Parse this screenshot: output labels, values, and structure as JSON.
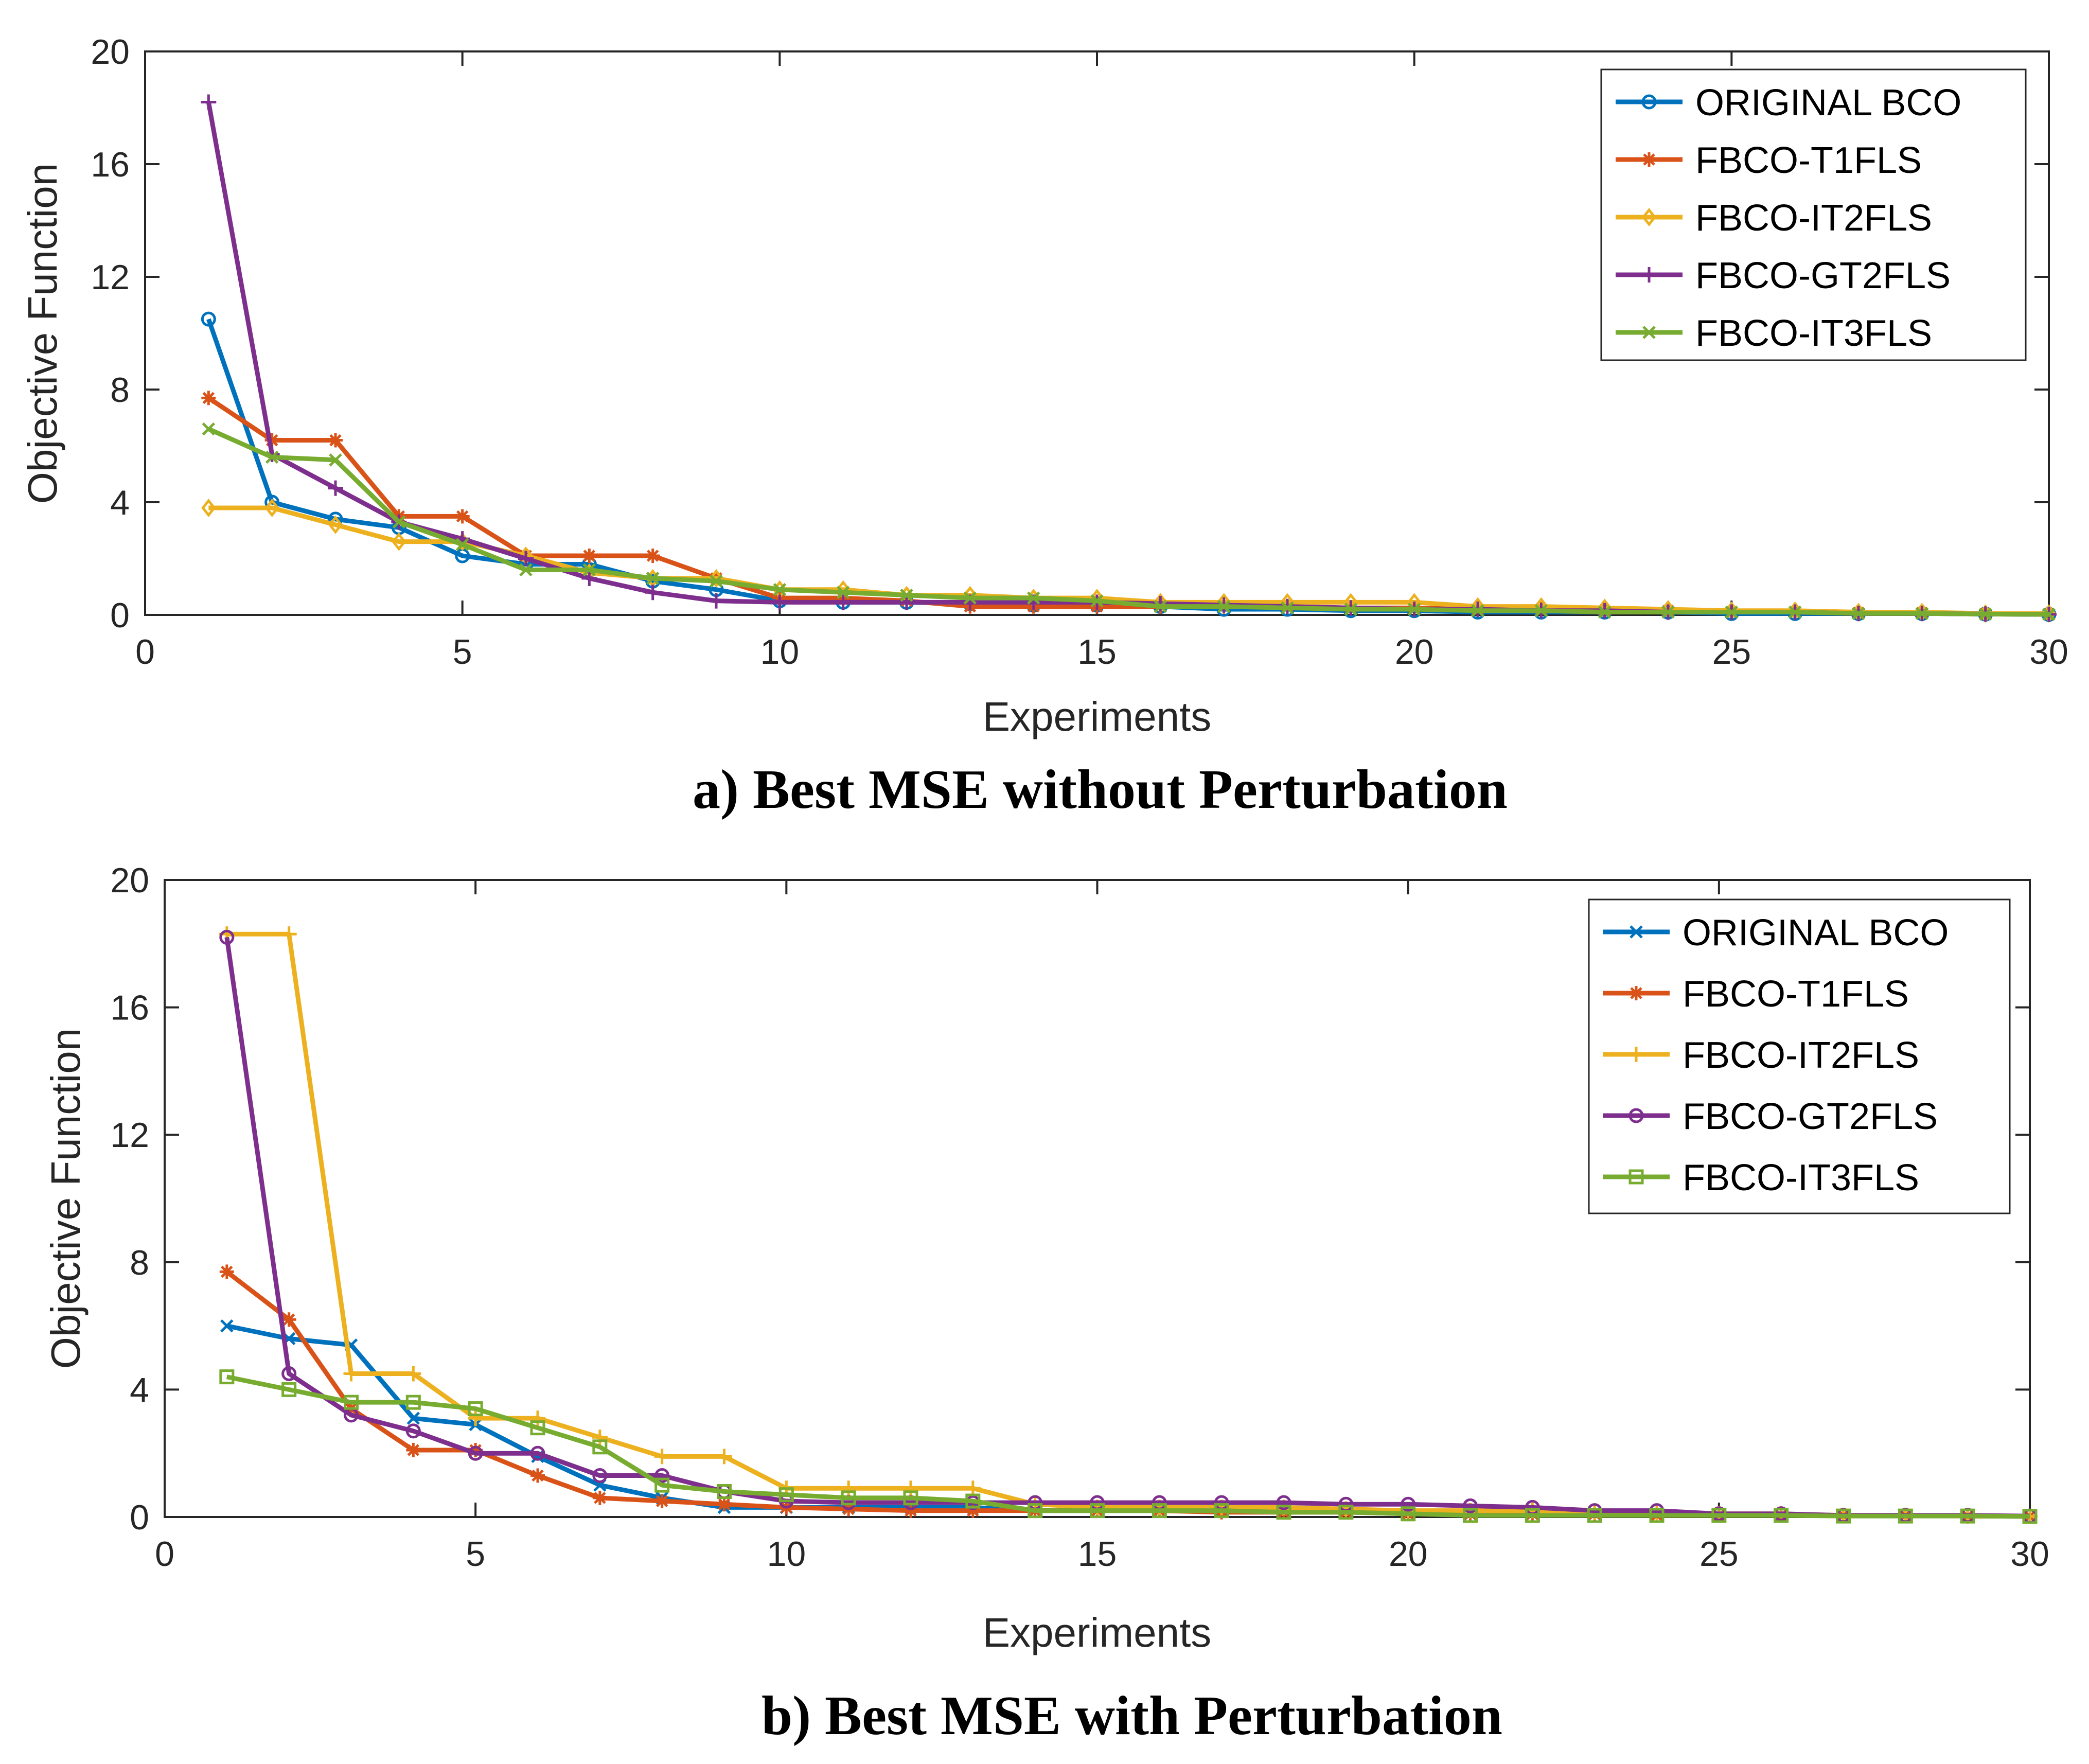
{
  "chart_data": [
    {
      "type": "line",
      "caption": "a) Best MSE without Perturbation",
      "xlabel": "Experiments",
      "ylabel": "Objective Function",
      "xlim": [
        0,
        30
      ],
      "ylim": [
        0,
        20
      ],
      "xticks": [
        0,
        5,
        10,
        15,
        20,
        25,
        30
      ],
      "yticks": [
        0,
        4,
        8,
        12,
        16,
        20
      ],
      "legend_position": "top-right",
      "x": [
        1,
        2,
        3,
        4,
        5,
        6,
        7,
        8,
        9,
        10,
        11,
        12,
        13,
        14,
        15,
        16,
        17,
        18,
        19,
        20,
        21,
        22,
        23,
        24,
        25,
        26,
        27,
        28,
        29,
        30
      ],
      "series": [
        {
          "name": "ORIGINAL BCO",
          "color": "#0072BD",
          "marker": "circle",
          "values": [
            10.5,
            4.0,
            3.4,
            3.1,
            2.1,
            1.8,
            1.8,
            1.2,
            0.9,
            0.5,
            0.45,
            0.45,
            0.4,
            0.35,
            0.35,
            0.3,
            0.2,
            0.2,
            0.15,
            0.15,
            0.1,
            0.1,
            0.1,
            0.1,
            0.05,
            0.05,
            0.05,
            0.05,
            0.03,
            0.02
          ]
        },
        {
          "name": "FBCO-T1FLS",
          "color": "#D95319",
          "marker": "asterisk",
          "values": [
            7.7,
            6.2,
            6.2,
            3.5,
            3.5,
            2.1,
            2.1,
            2.1,
            1.3,
            0.6,
            0.6,
            0.5,
            0.3,
            0.3,
            0.3,
            0.3,
            0.3,
            0.3,
            0.25,
            0.25,
            0.2,
            0.2,
            0.15,
            0.15,
            0.1,
            0.1,
            0.08,
            0.08,
            0.05,
            0.03
          ]
        },
        {
          "name": "FBCO-IT2FLS",
          "color": "#EDB120",
          "marker": "diamond",
          "values": [
            3.8,
            3.8,
            3.2,
            2.6,
            2.6,
            2.1,
            1.5,
            1.3,
            1.3,
            0.9,
            0.9,
            0.7,
            0.7,
            0.6,
            0.6,
            0.45,
            0.45,
            0.45,
            0.45,
            0.45,
            0.3,
            0.3,
            0.25,
            0.2,
            0.15,
            0.15,
            0.1,
            0.1,
            0.05,
            0.05
          ]
        },
        {
          "name": "FBCO-GT2FLS",
          "color": "#7E2F8E",
          "marker": "plus",
          "values": [
            18.2,
            5.7,
            4.5,
            3.3,
            2.7,
            2.0,
            1.3,
            0.8,
            0.5,
            0.45,
            0.45,
            0.45,
            0.45,
            0.45,
            0.45,
            0.4,
            0.35,
            0.3,
            0.25,
            0.2,
            0.2,
            0.15,
            0.15,
            0.1,
            0.1,
            0.1,
            0.05,
            0.05,
            0.03,
            0.02
          ]
        },
        {
          "name": "FBCO-IT3FLS",
          "color": "#77AC30",
          "marker": "cross",
          "values": [
            6.6,
            5.6,
            5.5,
            3.3,
            2.5,
            1.6,
            1.6,
            1.3,
            1.2,
            0.9,
            0.8,
            0.7,
            0.6,
            0.6,
            0.5,
            0.3,
            0.3,
            0.25,
            0.2,
            0.2,
            0.15,
            0.15,
            0.1,
            0.1,
            0.1,
            0.1,
            0.05,
            0.05,
            0.03,
            0.02
          ]
        }
      ]
    },
    {
      "type": "line",
      "caption": "b) Best MSE with Perturbation",
      "xlabel": "Experiments",
      "ylabel": "Objective Function",
      "xlim": [
        0,
        30
      ],
      "ylim": [
        0,
        20
      ],
      "xticks": [
        0,
        5,
        10,
        15,
        20,
        25,
        30
      ],
      "yticks": [
        0,
        4,
        8,
        12,
        16,
        20
      ],
      "legend_position": "top-right",
      "x": [
        1,
        2,
        3,
        4,
        5,
        6,
        7,
        8,
        9,
        10,
        11,
        12,
        13,
        14,
        15,
        16,
        17,
        18,
        19,
        20,
        21,
        22,
        23,
        24,
        25,
        26,
        27,
        28,
        29,
        30
      ],
      "series": [
        {
          "name": "ORIGINAL BCO",
          "color": "#0072BD",
          "marker": "cross",
          "values": [
            6.0,
            5.6,
            5.4,
            3.1,
            2.9,
            1.9,
            1.0,
            0.6,
            0.3,
            0.3,
            0.3,
            0.3,
            0.3,
            0.2,
            0.2,
            0.2,
            0.2,
            0.2,
            0.2,
            0.15,
            0.1,
            0.1,
            0.1,
            0.1,
            0.05,
            0.05,
            0.05,
            0.05,
            0.03,
            0.02
          ]
        },
        {
          "name": "FBCO-T1FLS",
          "color": "#D95319",
          "marker": "asterisk",
          "values": [
            7.7,
            6.2,
            3.4,
            2.1,
            2.1,
            1.3,
            0.6,
            0.5,
            0.4,
            0.3,
            0.25,
            0.2,
            0.2,
            0.2,
            0.2,
            0.2,
            0.15,
            0.15,
            0.15,
            0.1,
            0.1,
            0.1,
            0.1,
            0.05,
            0.05,
            0.05,
            0.05,
            0.05,
            0.03,
            0.02
          ]
        },
        {
          "name": "FBCO-IT2FLS",
          "color": "#EDB120",
          "marker": "plus",
          "values": [
            18.3,
            18.3,
            4.5,
            4.5,
            3.1,
            3.1,
            2.5,
            1.9,
            1.9,
            0.9,
            0.9,
            0.9,
            0.9,
            0.4,
            0.3,
            0.3,
            0.3,
            0.3,
            0.25,
            0.2,
            0.2,
            0.2,
            0.15,
            0.1,
            0.1,
            0.1,
            0.05,
            0.05,
            0.03,
            0.02
          ]
        },
        {
          "name": "FBCO-GT2FLS",
          "color": "#7E2F8E",
          "marker": "circle",
          "values": [
            18.2,
            4.5,
            3.2,
            2.7,
            2.0,
            2.0,
            1.3,
            1.3,
            0.8,
            0.5,
            0.45,
            0.45,
            0.45,
            0.45,
            0.45,
            0.45,
            0.45,
            0.45,
            0.4,
            0.4,
            0.35,
            0.3,
            0.2,
            0.2,
            0.1,
            0.1,
            0.05,
            0.05,
            0.05,
            0.03
          ]
        },
        {
          "name": "FBCO-IT3FLS",
          "color": "#77AC30",
          "marker": "square",
          "values": [
            4.4,
            4.0,
            3.6,
            3.6,
            3.4,
            2.8,
            2.2,
            1.0,
            0.8,
            0.7,
            0.6,
            0.6,
            0.5,
            0.2,
            0.2,
            0.2,
            0.2,
            0.15,
            0.15,
            0.1,
            0.05,
            0.05,
            0.05,
            0.05,
            0.05,
            0.05,
            0.03,
            0.03,
            0.03,
            0.02
          ]
        }
      ]
    }
  ]
}
